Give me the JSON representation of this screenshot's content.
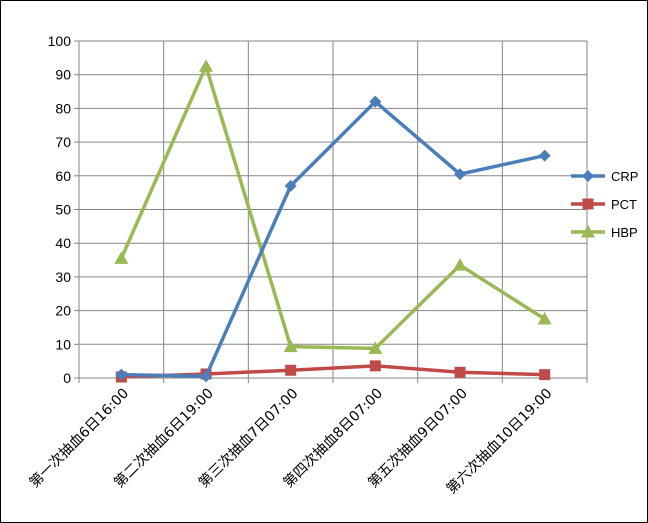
{
  "chart_data": {
    "type": "line",
    "title": "",
    "xlabel": "",
    "ylabel": "",
    "categories": [
      "第一次抽血6日16:00",
      "第二次抽血6日19:00",
      "第三次抽血7日07:00",
      "第四次抽血8日07:00",
      "第五次抽血9日07:00",
      "第六次抽血10日19:00"
    ],
    "ylim": [
      0,
      100
    ],
    "yticks": [
      0,
      10,
      20,
      30,
      40,
      50,
      60,
      70,
      80,
      90,
      100
    ],
    "grid": true,
    "legend_position": "right",
    "series": [
      {
        "name": "CRP",
        "color": "#4a7ebb",
        "marker": "diamond",
        "values": [
          1,
          0.5,
          57,
          82,
          60.5,
          66
        ]
      },
      {
        "name": "PCT",
        "color": "#be4b48",
        "marker": "square",
        "values": [
          0.3,
          1.2,
          2.3,
          3.6,
          1.7,
          1.0
        ]
      },
      {
        "name": "HBP",
        "color": "#98b954",
        "marker": "triangle",
        "values": [
          35.5,
          92.5,
          9.3,
          8.8,
          33.5,
          17.5
        ]
      }
    ]
  }
}
